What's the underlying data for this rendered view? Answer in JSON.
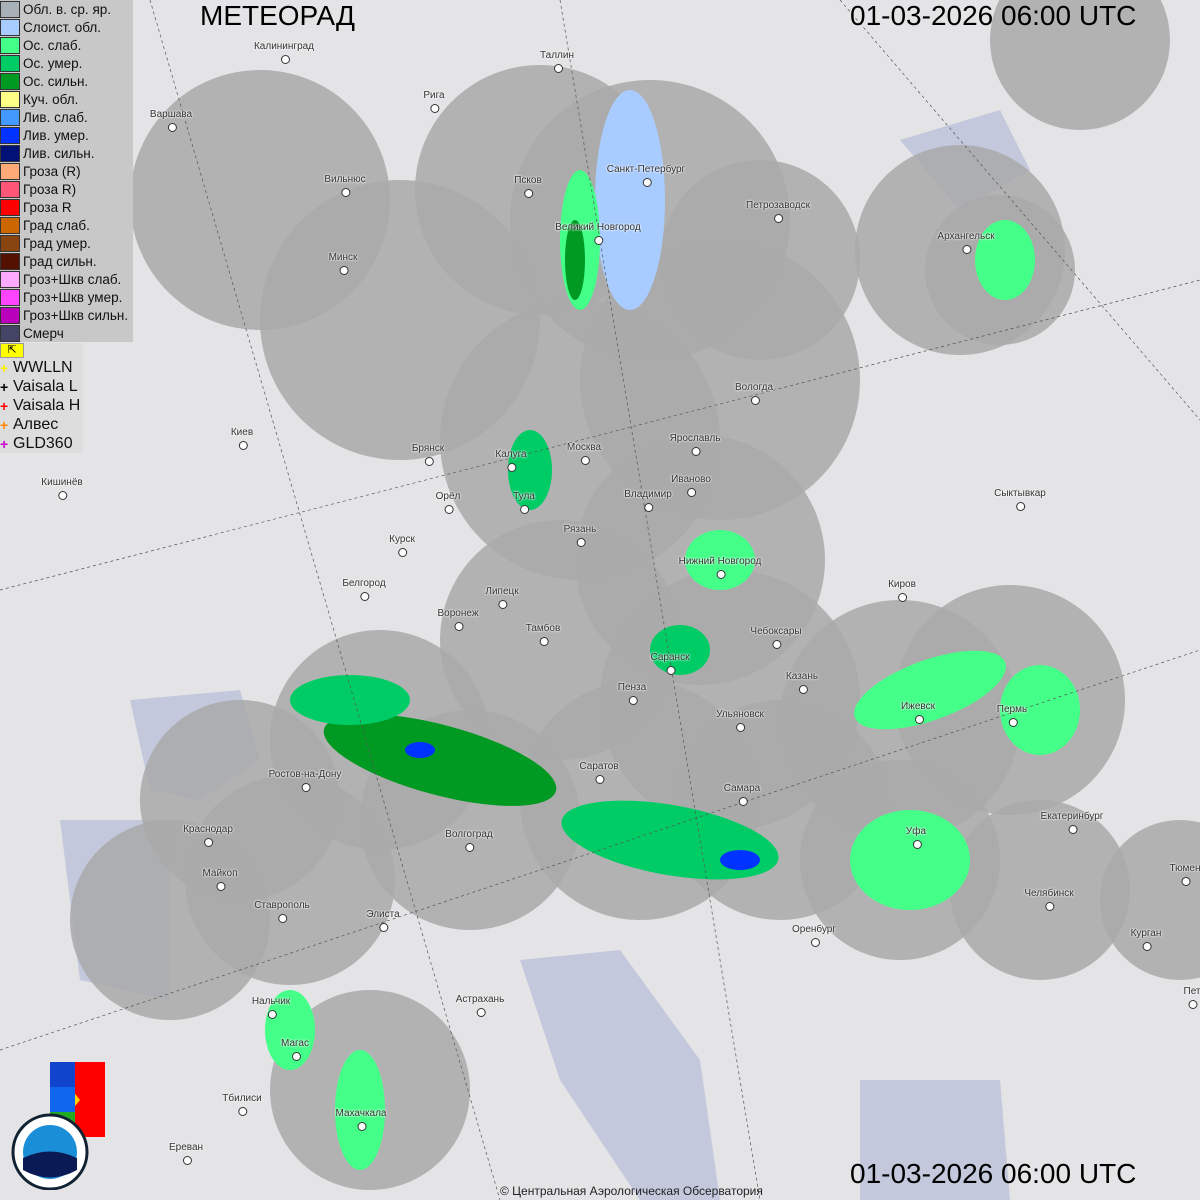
{
  "header": {
    "title": "МЕТЕОРАД",
    "datetime_top": "01-03-2026  06:00 UTC",
    "datetime_bottom": "01-03-2026  06:00 UTC"
  },
  "legend": [
    {
      "label": "Обл. в. ср. яр.",
      "color": "#a8b0b8"
    },
    {
      "label": "Слоист. обл.",
      "color": "#a8ccff"
    },
    {
      "label": "Ос. слаб.",
      "color": "#44ff88"
    },
    {
      "label": "Ос. умер.",
      "color": "#00cc66"
    },
    {
      "label": "Ос. сильн.",
      "color": "#009922"
    },
    {
      "label": "Куч. обл.",
      "color": "#ffff88"
    },
    {
      "label": "Лив. слаб.",
      "color": "#4499ff"
    },
    {
      "label": "Лив. умер.",
      "color": "#0033ff"
    },
    {
      "label": "Лив. сильн.",
      "color": "#001177"
    },
    {
      "label": "Гроза (R)",
      "color": "#ffaa77"
    },
    {
      "label": "Гроза R)",
      "color": "#ff5577"
    },
    {
      "label": "Гроза R",
      "color": "#ff0000"
    },
    {
      "label": "Град слаб.",
      "color": "#cc6600"
    },
    {
      "label": "Град умер.",
      "color": "#884411"
    },
    {
      "label": "Град сильн.",
      "color": "#551100"
    },
    {
      "label": "Гроз+Шкв слаб.",
      "color": "#ffaaff"
    },
    {
      "label": "Гроз+Шкв умер.",
      "color": "#ff44ff"
    },
    {
      "label": "Гроз+Шкв сильн.",
      "color": "#bb00bb"
    },
    {
      "label": "Смерч",
      "color": "#444466"
    }
  ],
  "lightning": [
    {
      "label": "WWLLN",
      "color": "#ffee00"
    },
    {
      "label": "Vaisala L",
      "color": "#000000"
    },
    {
      "label": "Vaisala H",
      "color": "#ff0000"
    },
    {
      "label": "Алвес",
      "color": "#ff8800"
    },
    {
      "label": "GLD360",
      "color": "#cc00cc"
    }
  ],
  "arrow_icon": "cursor-arrow-icon",
  "cities": [
    "Калининград",
    "Таллин",
    "Рига",
    "Варшава",
    "Санкт-Петербург",
    "Вильнюс",
    "Псков",
    "Петрозаводск",
    "Великий Новгород",
    "Архангельск",
    "Минск",
    "Вологда",
    "Киев",
    "Брянск",
    "Калуга",
    "Москва",
    "Ярославль",
    "Иваново",
    "Кишинёв",
    "Тула",
    "Владимир",
    "Орёл",
    "Сыктывкар",
    "Рязань",
    "Курск",
    "Нижний Новгород",
    "Белгород",
    "Киров",
    "Липецк",
    "Воронеж",
    "Тамбов",
    "Чебоксары",
    "Саранск",
    "Казань",
    "Пенза",
    "Ижевск",
    "Пермь",
    "Ульяновск",
    "Саратов",
    "Ростов-на-Дону",
    "Самара",
    "Екатеринбург",
    "Краснодар",
    "Уфа",
    "Волгоград",
    "Майкоп",
    "Челябинск",
    "Ставрополь",
    "Элиста",
    "Оренбург",
    "Курган",
    "Тюмен",
    "Астрахань",
    "Нальчик",
    "Магас",
    "Тбилиси",
    "Махачкала",
    "Ереван",
    "Пет"
  ],
  "logos": {
    "cao": "ЦАО 1941",
    "roshydromet": "РОСГИДРОМЕТ ROSHYDROMET"
  },
  "copyright": "© Центральная Аэрологическая Обсерватория"
}
